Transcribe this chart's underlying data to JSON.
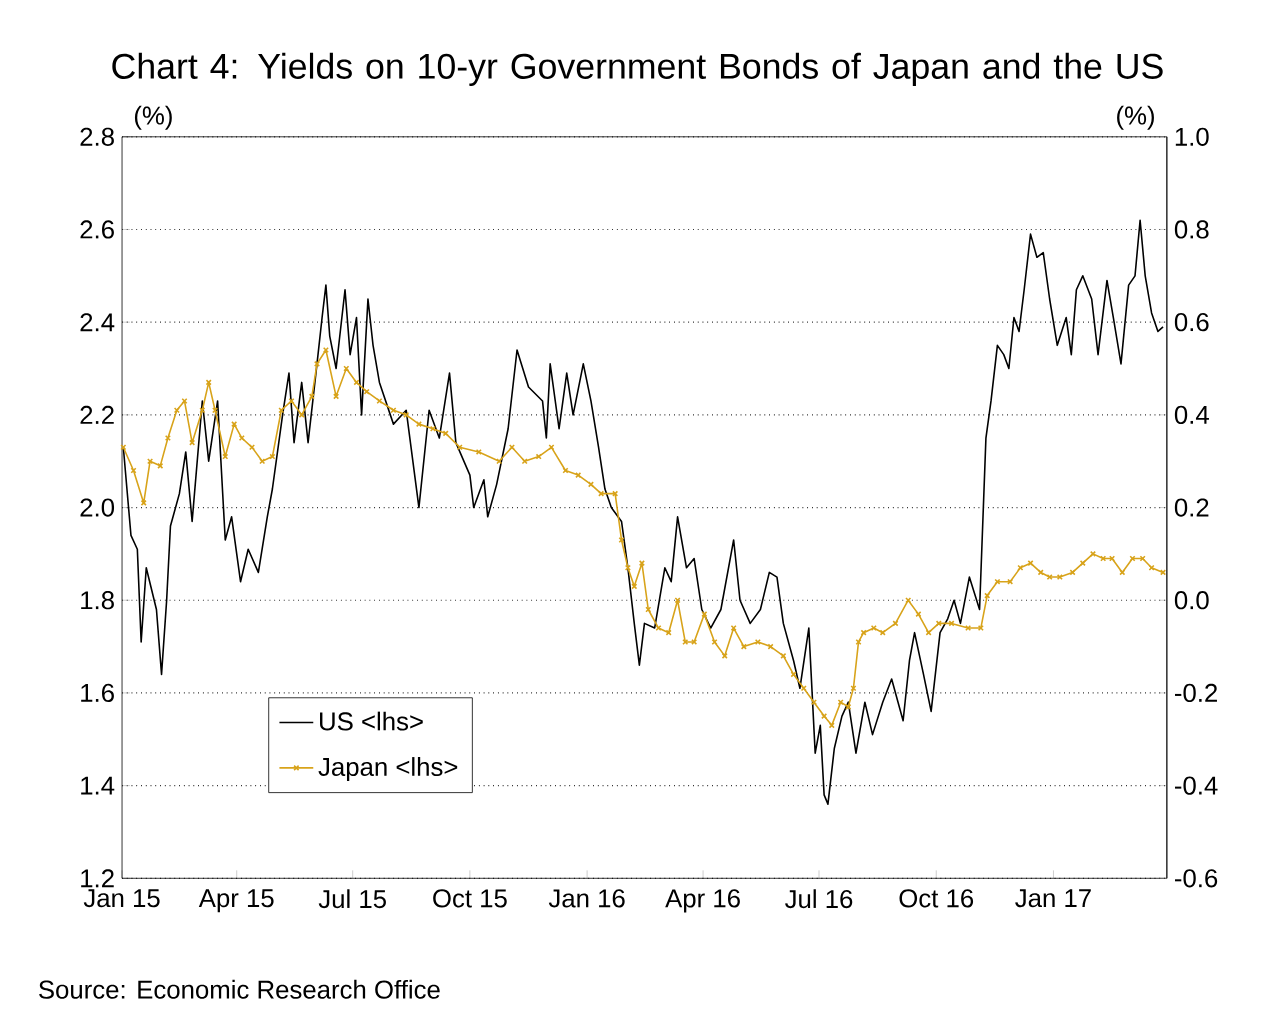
{
  "chart_data": {
    "type": "line",
    "title": "Chart 4: Yields on 10-yr Government Bonds of Japan and the US",
    "ylabel": "(%)",
    "y2label": "(%)",
    "annotations": [
      "Source: Economic Research Office"
    ],
    "grid": "y",
    "legend": "bottom left",
    "xlim": [
      "2015-01-01",
      "2017-03-31"
    ],
    "xticks": [
      {
        "value": "2015-01-01",
        "label": "Jan 15"
      },
      {
        "value": "2015-04-01",
        "label": "Apr 15"
      },
      {
        "value": "2015-07-01",
        "label": "Jul 15"
      },
      {
        "value": "2015-10-01",
        "label": "Oct 15"
      },
      {
        "value": "2016-01-01",
        "label": "Jan 16"
      },
      {
        "value": "2016-04-01",
        "label": "Apr 16"
      },
      {
        "value": "2016-07-01",
        "label": "Jul 16"
      },
      {
        "value": "2016-10-01",
        "label": "Oct 16"
      },
      {
        "value": "2017-01-01",
        "label": "Jan 17"
      }
    ],
    "ylim": [
      1.2,
      2.8
    ],
    "yticks": [
      1.2,
      1.4,
      1.6,
      1.8,
      {
        "value": 2,
        "label": "2.0"
      },
      2.2,
      2.4,
      2.6,
      2.8
    ],
    "y2lim": [
      -0.6,
      1.0
    ],
    "y2ticks": [
      -0.6,
      -0.4,
      -0.2,
      {
        "value": 0,
        "label": "0.0"
      },
      0.2,
      0.4,
      0.6,
      0.8,
      {
        "value": 1,
        "label": "1.0"
      }
    ],
    "series": [
      {
        "name": "US <lhs>",
        "color": "#000000",
        "marker": "none",
        "line_style": "solid",
        "x": [
          "2015-01-02",
          "2015-01-08",
          "2015-01-13",
          "2015-01-16",
          "2015-01-20",
          "2015-01-28",
          "2015-02-01",
          "2015-02-05",
          "2015-02-08",
          "2015-02-15",
          "2015-02-20",
          "2015-02-25",
          "2015-03-05",
          "2015-03-10",
          "2015-03-17",
          "2015-03-23",
          "2015-03-28",
          "2015-04-04",
          "2015-04-10",
          "2015-04-18",
          "2015-04-25",
          "2015-04-29",
          "2015-05-07",
          "2015-05-12",
          "2015-05-16",
          "2015-05-22",
          "2015-05-27",
          "2015-06-03",
          "2015-06-07",
          "2015-06-10",
          "2015-06-13",
          "2015-06-18",
          "2015-06-25",
          "2015-06-29",
          "2015-07-04",
          "2015-07-08",
          "2015-07-13",
          "2015-07-17",
          "2015-07-22",
          "2015-08-02",
          "2015-08-12",
          "2015-08-22",
          "2015-08-30",
          "2015-09-07",
          "2015-09-15",
          "2015-09-20",
          "2015-10-01",
          "2015-10-04",
          "2015-10-12",
          "2015-10-15",
          "2015-10-22",
          "2015-10-31",
          "2015-11-07",
          "2015-11-16",
          "2015-11-27",
          "2015-11-30",
          "2015-12-03",
          "2015-12-10",
          "2015-12-16",
          "2015-12-21",
          "2015-12-29",
          "2016-01-04",
          "2016-01-10",
          "2016-01-15",
          "2016-01-20",
          "2016-01-28",
          "2016-02-02",
          "2016-02-07",
          "2016-02-11",
          "2016-02-15",
          "2016-02-23",
          "2016-03-02",
          "2016-03-07",
          "2016-03-12",
          "2016-03-19",
          "2016-03-25",
          "2016-03-31",
          "2016-04-07",
          "2016-04-15",
          "2016-04-25",
          "2016-04-30",
          "2016-05-08",
          "2016-05-16",
          "2016-05-23",
          "2016-05-29",
          "2016-06-03",
          "2016-06-11",
          "2016-06-16",
          "2016-06-23",
          "2016-06-28",
          "2016-07-02",
          "2016-07-05",
          "2016-07-08",
          "2016-07-13",
          "2016-07-19",
          "2016-07-24",
          "2016-07-30",
          "2016-08-06",
          "2016-08-12",
          "2016-08-20",
          "2016-08-27",
          "2016-09-05",
          "2016-09-10",
          "2016-09-14",
          "2016-09-21",
          "2016-09-27",
          "2016-10-04",
          "2016-10-10",
          "2016-10-15",
          "2016-10-20",
          "2016-10-27",
          "2016-11-04",
          "2016-11-09",
          "2016-11-13",
          "2016-11-18",
          "2016-11-23",
          "2016-11-27",
          "2016-12-01",
          "2016-12-05",
          "2016-12-09",
          "2016-12-14",
          "2016-12-19",
          "2016-12-24",
          "2016-12-29",
          "2017-01-04",
          "2017-01-11",
          "2017-01-15",
          "2017-01-19",
          "2017-01-24",
          "2017-01-31",
          "2017-02-05",
          "2017-02-12",
          "2017-02-17",
          "2017-02-23",
          "2017-03-01",
          "2017-03-06",
          "2017-03-10",
          "2017-03-14",
          "2017-03-19",
          "2017-03-24",
          "2017-03-28"
        ],
        "values": [
          2.13,
          1.94,
          1.91,
          1.71,
          1.87,
          1.78,
          1.64,
          1.8,
          1.96,
          2.03,
          2.12,
          1.97,
          2.23,
          2.1,
          2.23,
          1.93,
          1.98,
          1.84,
          1.91,
          1.86,
          1.98,
          2.04,
          2.2,
          2.29,
          2.14,
          2.27,
          2.14,
          2.31,
          2.41,
          2.48,
          2.37,
          2.3,
          2.47,
          2.33,
          2.41,
          2.2,
          2.45,
          2.35,
          2.27,
          2.18,
          2.21,
          2.0,
          2.21,
          2.15,
          2.29,
          2.14,
          2.07,
          2.0,
          2.06,
          1.98,
          2.05,
          2.17,
          2.34,
          2.26,
          2.23,
          2.15,
          2.31,
          2.17,
          2.29,
          2.2,
          2.31,
          2.23,
          2.13,
          2.04,
          2.0,
          1.97,
          1.87,
          1.75,
          1.66,
          1.75,
          1.74,
          1.87,
          1.84,
          1.98,
          1.87,
          1.89,
          1.78,
          1.74,
          1.78,
          1.93,
          1.8,
          1.75,
          1.78,
          1.86,
          1.85,
          1.75,
          1.67,
          1.61,
          1.74,
          1.47,
          1.53,
          1.38,
          1.36,
          1.48,
          1.55,
          1.58,
          1.47,
          1.58,
          1.51,
          1.58,
          1.63,
          1.54,
          1.67,
          1.73,
          1.64,
          1.56,
          1.73,
          1.76,
          1.8,
          1.75,
          1.85,
          1.78,
          2.15,
          2.23,
          2.35,
          2.33,
          2.3,
          2.41,
          2.38,
          2.47,
          2.59,
          2.54,
          2.55,
          2.45,
          2.35,
          2.41,
          2.33,
          2.47,
          2.5,
          2.45,
          2.33,
          2.49,
          2.41,
          2.31,
          2.48,
          2.5,
          2.62,
          2.5,
          2.42,
          2.38,
          2.39
        ]
      },
      {
        "name": "Japan <lhs>",
        "color": "#d8a31a",
        "marker": "cross",
        "line_style": "solid",
        "axis": "y2",
        "x": [
          "2015-01-02",
          "2015-01-10",
          "2015-01-18",
          "2015-01-23",
          "2015-01-31",
          "2015-02-06",
          "2015-02-13",
          "2015-02-19",
          "2015-02-25",
          "2015-03-05",
          "2015-03-10",
          "2015-03-15",
          "2015-03-23",
          "2015-03-30",
          "2015-04-05",
          "2015-04-13",
          "2015-04-21",
          "2015-04-29",
          "2015-05-06",
          "2015-05-14",
          "2015-05-22",
          "2015-05-30",
          "2015-06-03",
          "2015-06-10",
          "2015-06-18",
          "2015-06-26",
          "2015-07-04",
          "2015-07-12",
          "2015-07-22",
          "2015-08-02",
          "2015-08-12",
          "2015-08-22",
          "2015-09-02",
          "2015-09-12",
          "2015-09-23",
          "2015-10-08",
          "2015-10-24",
          "2015-11-03",
          "2015-11-13",
          "2015-11-24",
          "2015-12-04",
          "2015-12-15",
          "2015-12-25",
          "2016-01-04",
          "2016-01-12",
          "2016-01-23",
          "2016-01-28",
          "2016-02-02",
          "2016-02-07",
          "2016-02-13",
          "2016-02-18",
          "2016-02-26",
          "2016-03-05",
          "2016-03-12",
          "2016-03-18",
          "2016-03-25",
          "2016-04-02",
          "2016-04-10",
          "2016-04-18",
          "2016-04-25",
          "2016-05-03",
          "2016-05-14",
          "2016-05-24",
          "2016-06-03",
          "2016-06-11",
          "2016-06-19",
          "2016-06-27",
          "2016-07-05",
          "2016-07-11",
          "2016-07-18",
          "2016-07-24",
          "2016-07-28",
          "2016-08-01",
          "2016-08-05",
          "2016-08-13",
          "2016-08-20",
          "2016-08-30",
          "2016-09-09",
          "2016-09-17",
          "2016-09-25",
          "2016-10-03",
          "2016-10-13",
          "2016-10-26",
          "2016-11-05",
          "2016-11-10",
          "2016-11-18",
          "2016-11-28",
          "2016-12-06",
          "2016-12-14",
          "2016-12-22",
          "2016-12-29",
          "2017-01-06",
          "2017-01-16",
          "2017-01-24",
          "2017-02-01",
          "2017-02-09",
          "2017-02-16",
          "2017-02-24",
          "2017-03-04",
          "2017-03-12",
          "2017-03-19",
          "2017-03-28"
        ],
        "values": [
          0.33,
          0.28,
          0.21,
          0.3,
          0.29,
          0.35,
          0.41,
          0.43,
          0.34,
          0.41,
          0.47,
          0.41,
          0.31,
          0.38,
          0.35,
          0.33,
          0.3,
          0.31,
          0.41,
          0.43,
          0.4,
          0.44,
          0.51,
          0.54,
          0.44,
          0.5,
          0.47,
          0.45,
          0.43,
          0.41,
          0.4,
          0.38,
          0.37,
          0.36,
          0.33,
          0.32,
          0.3,
          0.33,
          0.3,
          0.31,
          0.33,
          0.28,
          0.27,
          0.25,
          0.23,
          0.23,
          0.13,
          0.07,
          0.03,
          0.08,
          -0.02,
          -0.06,
          -0.07,
          0.0,
          -0.09,
          -0.09,
          -0.03,
          -0.09,
          -0.12,
          -0.06,
          -0.1,
          -0.09,
          -0.1,
          -0.12,
          -0.16,
          -0.19,
          -0.22,
          -0.25,
          -0.27,
          -0.22,
          -0.23,
          -0.19,
          -0.09,
          -0.07,
          -0.06,
          -0.07,
          -0.05,
          0.0,
          -0.03,
          -0.07,
          -0.05,
          -0.05,
          -0.06,
          -0.06,
          0.01,
          0.04,
          0.04,
          0.07,
          0.08,
          0.06,
          0.05,
          0.05,
          0.06,
          0.08,
          0.1,
          0.09,
          0.09,
          0.06,
          0.09,
          0.09,
          0.07,
          0.06
        ]
      }
    ]
  }
}
